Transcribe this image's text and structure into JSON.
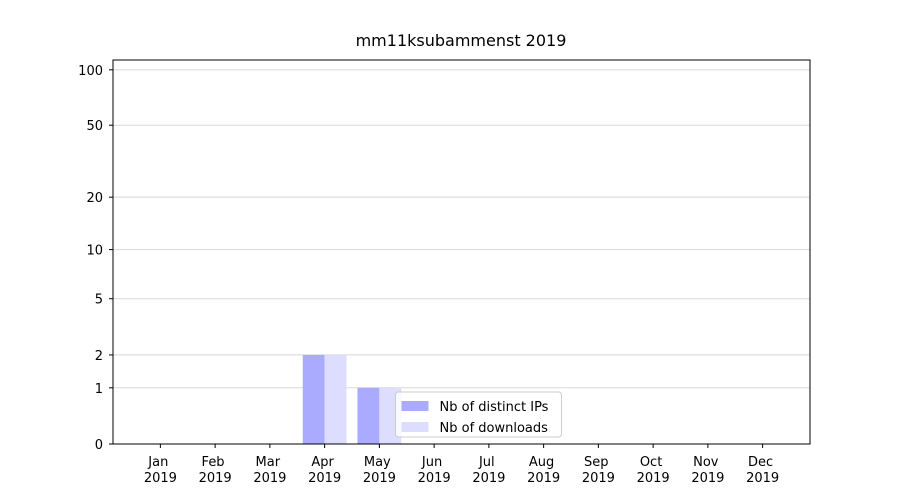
{
  "chart_data": {
    "type": "bar",
    "title": "mm11ksubammenst 2019",
    "categories": [
      "Jan 2019",
      "Feb 2019",
      "Mar 2019",
      "Apr 2019",
      "May 2019",
      "Jun 2019",
      "Jul 2019",
      "Aug 2019",
      "Sep 2019",
      "Oct 2019",
      "Nov 2019",
      "Dec 2019"
    ],
    "series": [
      {
        "name": "Nb of distinct IPs",
        "color": "#aaaaff",
        "values": [
          0,
          0,
          0,
          2,
          1,
          0,
          0,
          0,
          0,
          0,
          0,
          0
        ]
      },
      {
        "name": "Nb of downloads",
        "color": "#ddddff",
        "values": [
          0,
          0,
          0,
          2,
          1,
          0,
          0,
          0,
          0,
          0,
          0,
          0
        ]
      }
    ],
    "yscale": "log1p",
    "ylim": [
      0,
      113
    ],
    "yticks": [
      0,
      1,
      2,
      5,
      10,
      20,
      50,
      100
    ],
    "grid": true,
    "legend": "lower center"
  }
}
